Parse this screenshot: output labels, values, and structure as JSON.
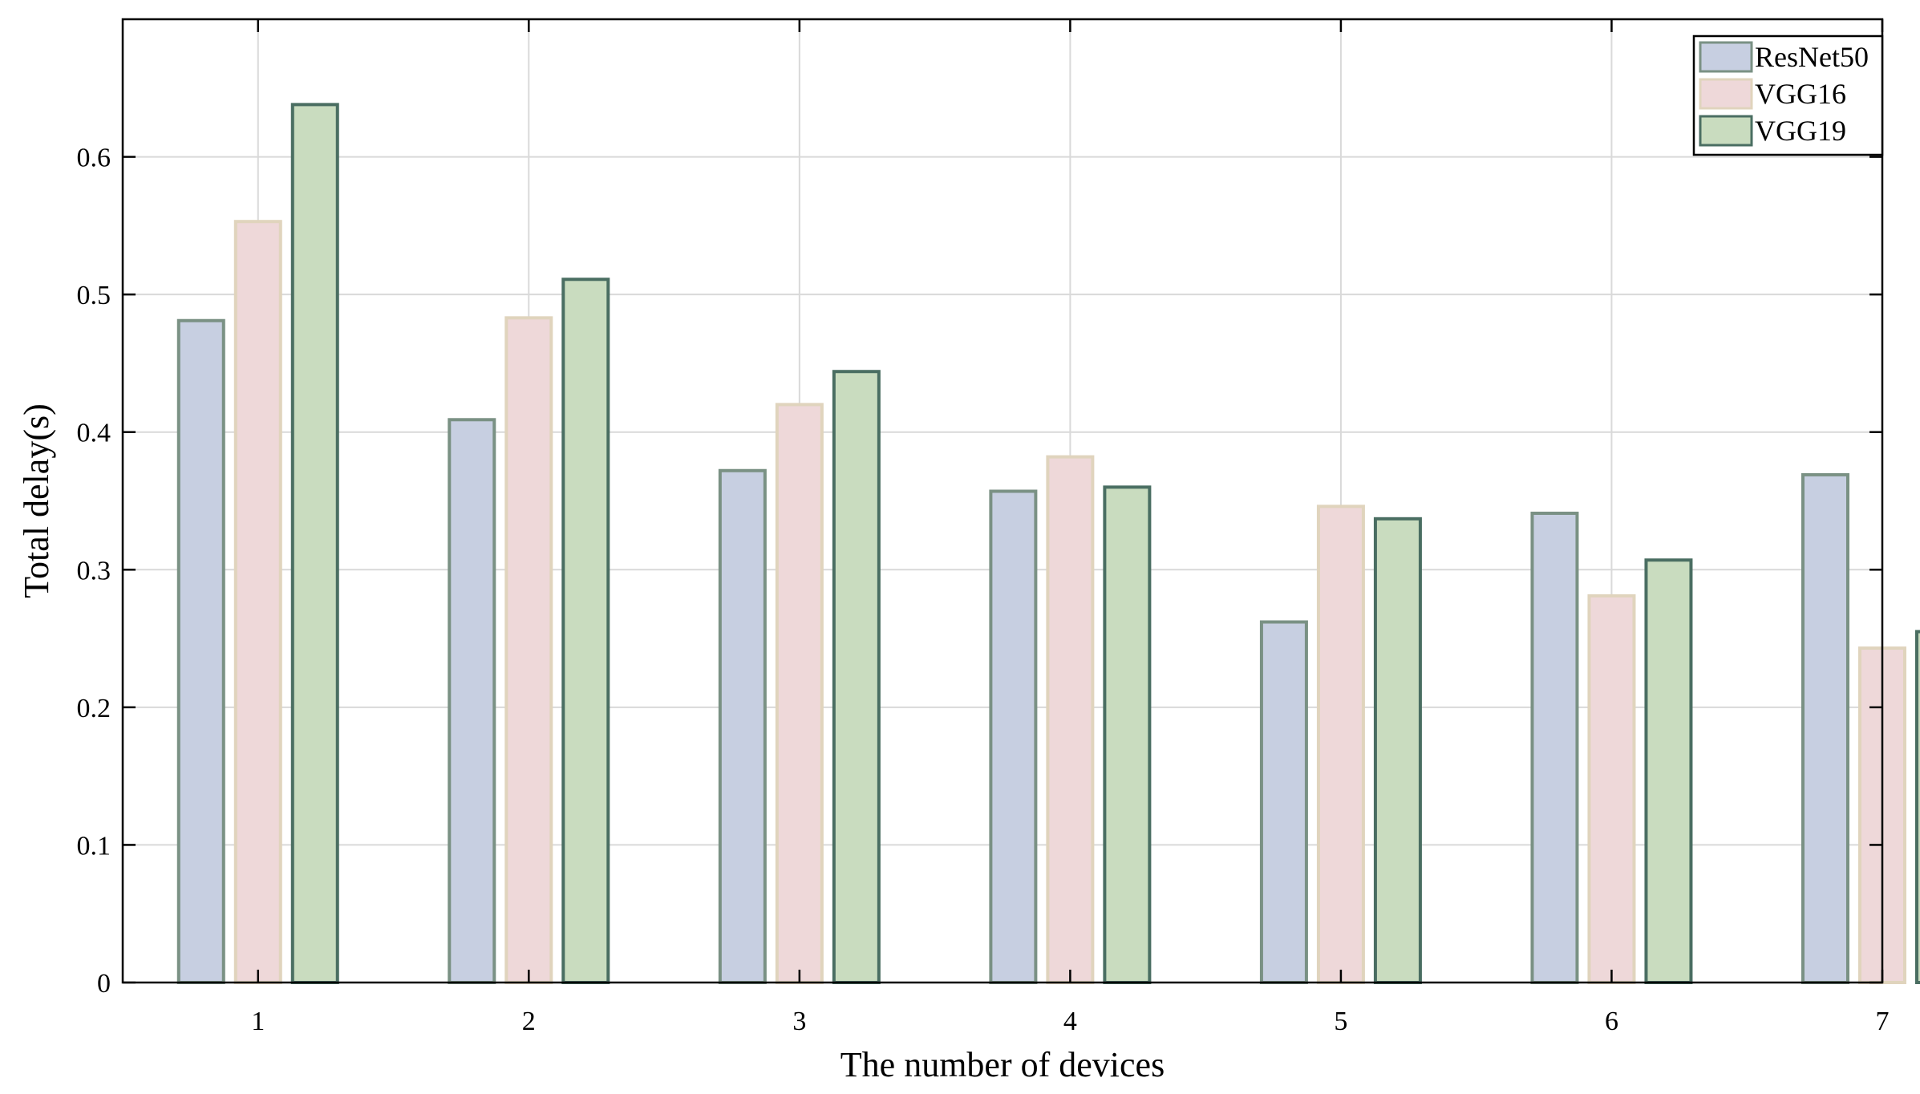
{
  "chart_data": {
    "type": "bar",
    "xlabel": "The number of devices",
    "ylabel": "Total delay(s)",
    "categories": [
      "1",
      "2",
      "3",
      "4",
      "5",
      "6",
      "7"
    ],
    "ylim": [
      0,
      0.7
    ],
    "yticks": [
      "0",
      "0.1",
      "0.2",
      "0.3",
      "0.4",
      "0.5",
      "0.6"
    ],
    "grid": true,
    "legend_position": "top-right",
    "series": [
      {
        "name": "ResNet50",
        "values": [
          0.481,
          0.409,
          0.372,
          0.357,
          0.262,
          0.341,
          0.369
        ],
        "fill": "#c7cfe1",
        "stroke": "#7a9184"
      },
      {
        "name": "VGG16",
        "values": [
          0.553,
          0.483,
          0.42,
          0.382,
          0.346,
          0.281,
          0.243
        ],
        "fill": "#eed8d9",
        "stroke": "#e0d4bd"
      },
      {
        "name": "VGG19",
        "values": [
          0.638,
          0.511,
          0.444,
          0.36,
          0.337,
          0.307,
          0.255
        ],
        "fill": "#c9dcbf",
        "stroke": "#4a6e62"
      }
    ]
  }
}
